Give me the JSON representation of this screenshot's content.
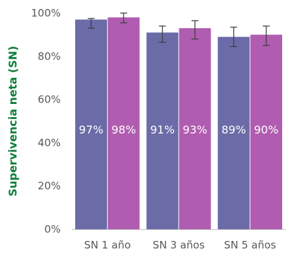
{
  "chart_data": {
    "type": "bar",
    "categories": [
      "SN 1 año",
      "SN 3 años",
      "SN 5 años"
    ],
    "series": [
      {
        "color": "#6b6ba8",
        "values": [
          97,
          91,
          89
        ],
        "labels": [
          "97%",
          "91%",
          "89%"
        ],
        "error_low": [
          93,
          86.5,
          84.5
        ],
        "error_high": [
          97.5,
          94,
          93.5
        ]
      },
      {
        "color": "#b05cb0",
        "values": [
          98,
          93,
          90
        ],
        "labels": [
          "98%",
          "93%",
          "90%"
        ],
        "error_low": [
          95.5,
          88,
          85
        ],
        "error_high": [
          100,
          96.5,
          94
        ]
      }
    ],
    "ylabel": "Supervivencia neta (SN)",
    "ylabel_color": "#0f7f3a",
    "ylim": [
      0,
      100
    ],
    "yticks": [
      0,
      20,
      40,
      60,
      80,
      100
    ],
    "ytick_labels": [
      "0%",
      "20%",
      "40%",
      "60%",
      "80%",
      "100%"
    ],
    "grid": false
  }
}
